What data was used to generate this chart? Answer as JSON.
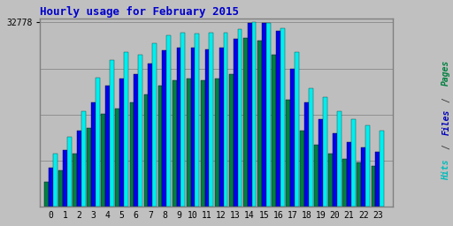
{
  "title": "Hourly usage for February 2015",
  "hours": [
    0,
    1,
    2,
    3,
    4,
    5,
    6,
    7,
    8,
    9,
    10,
    11,
    12,
    13,
    14,
    15,
    16,
    17,
    18,
    19,
    20,
    21,
    22,
    23
  ],
  "pages": [
    4500,
    6500,
    9500,
    14000,
    16500,
    17500,
    18500,
    20000,
    21500,
    22500,
    22800,
    22500,
    22800,
    23500,
    30000,
    29500,
    27000,
    19000,
    13500,
    11000,
    9500,
    8500,
    7800,
    7200
  ],
  "files": [
    7000,
    10000,
    13500,
    18500,
    21500,
    22800,
    23500,
    25500,
    27800,
    28200,
    28300,
    28000,
    28200,
    29800,
    32600,
    32700,
    31200,
    24500,
    18500,
    15500,
    13000,
    11500,
    10500,
    9800
  ],
  "hits": [
    9500,
    12500,
    17000,
    23000,
    26000,
    27500,
    27000,
    29000,
    30500,
    31000,
    30800,
    31000,
    31000,
    31500,
    32778,
    32600,
    31800,
    27500,
    21000,
    19500,
    17000,
    15500,
    14500,
    13500
  ],
  "ymax": 32778,
  "ytick_label": "32778",
  "color_pages": "#008040",
  "color_files": "#0000EE",
  "color_hits": "#00EEEE",
  "bg_color": "#C0C0C0",
  "plot_bg": "#BEBEBE",
  "title_color": "#0000CC",
  "ylabel_pages_color": "#008040",
  "ylabel_files_color": "#0000BB",
  "ylabel_hits_color": "#00BBBB",
  "bar_width": 0.3,
  "border_color": "#808080"
}
